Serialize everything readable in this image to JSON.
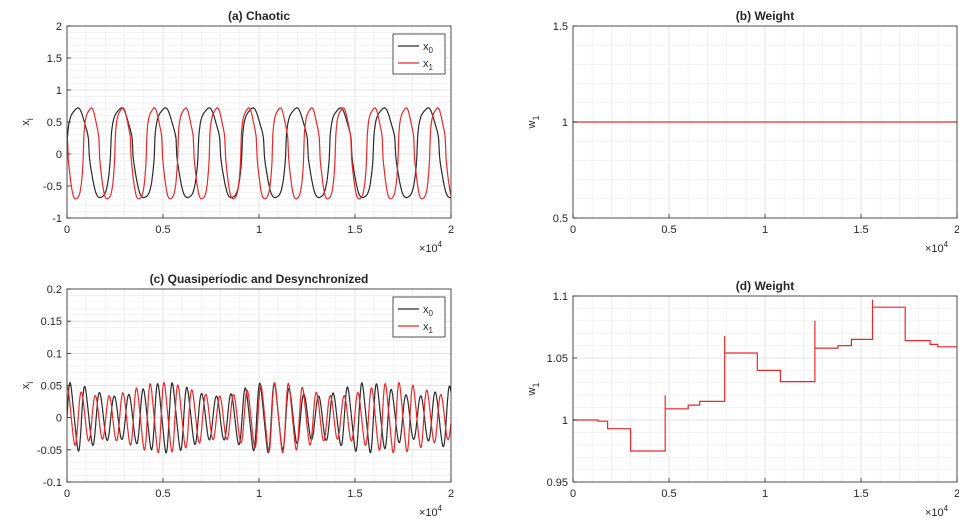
{
  "chart_data": [
    {
      "type": "line",
      "title": "(a) Chaotic",
      "ylabel": "x_i",
      "xlim": [
        0,
        20000
      ],
      "ylim": [
        -1,
        2
      ],
      "x_ticks": [
        "0",
        "0.5",
        "1",
        "1.5",
        "2"
      ],
      "y_ticks": [
        "-1",
        "-0.5",
        "0",
        "0.5",
        "1",
        "1.5",
        "2"
      ],
      "x_exponent": "×10^4",
      "legend_position": "top-right",
      "grid": true,
      "colors": {
        "x0": "#2b2b2b",
        "x1": "#e8292c"
      },
      "legend": [
        {
          "base": "x",
          "sub": "0"
        },
        {
          "base": "x",
          "sub": "1"
        }
      ],
      "series": [
        {
          "name": "x0",
          "period": 2280,
          "phase": 2280,
          "amplitude": 0.72,
          "dip": 0.68,
          "offset": 0
        },
        {
          "name": "x1",
          "period": 1640,
          "phase": 780,
          "amplitude": 0.72,
          "dip": 0.7,
          "offset": 0
        }
      ]
    },
    {
      "type": "line",
      "title": "(b) Weight",
      "ylabel": "w_1",
      "xlim": [
        0,
        20000
      ],
      "ylim": [
        0.5,
        1.5
      ],
      "x_ticks": [
        "0",
        "0.5",
        "1",
        "1.5",
        "2"
      ],
      "y_ticks": [
        "0.5",
        "1",
        "1.5"
      ],
      "x_exponent": "×10^4",
      "grid": true,
      "colors": {
        "w1": "#e8292c"
      },
      "series": [
        {
          "name": "w1",
          "x": [
            0,
            20000
          ],
          "y": [
            1,
            1
          ]
        }
      ]
    },
    {
      "type": "line",
      "title": "(c) Quasiperiodic and Desynchronized",
      "ylabel": "x_i",
      "xlim": [
        0,
        20000
      ],
      "ylim": [
        -0.1,
        0.2
      ],
      "x_ticks": [
        "0",
        "0.5",
        "1",
        "1.5",
        "2"
      ],
      "y_ticks": [
        "-0.1",
        "-0.05",
        "0",
        "0.05",
        "0.1",
        "0.15",
        "0.2"
      ],
      "x_exponent": "×10^4",
      "legend_position": "top-right",
      "grid": true,
      "colors": {
        "x0": "#2b2b2b",
        "x1": "#e8292c"
      },
      "legend": [
        {
          "base": "x",
          "sub": "0"
        },
        {
          "base": "x",
          "sub": "1"
        }
      ],
      "series": [
        {
          "name": "x0",
          "carrier_period": 760,
          "envelope_period": 5200,
          "amplitude": 0.095,
          "phase": 0
        },
        {
          "name": "x1",
          "carrier_period": 720,
          "envelope_period": 6100,
          "amplitude": 0.095,
          "phase": 1.2
        }
      ]
    },
    {
      "type": "line",
      "title": "(d) Weight",
      "ylabel": "w_1",
      "xlim": [
        0,
        20000
      ],
      "ylim": [
        0.95,
        1.1
      ],
      "x_ticks": [
        "0",
        "0.5",
        "1",
        "1.5",
        "2"
      ],
      "y_ticks": [
        "0.95",
        "1",
        "1.05",
        "1.1"
      ],
      "x_exponent": "×10^4",
      "grid": true,
      "colors": {
        "w1": "#e8292c"
      },
      "series": [
        {
          "name": "w1",
          "x": [
            0,
            1300,
            1300,
            1800,
            1800,
            3000,
            3000,
            4800,
            4800,
            4800,
            4800,
            6000,
            6000,
            6600,
            6600,
            7900,
            7900,
            7900,
            7900,
            9600,
            9600,
            10800,
            10800,
            12600,
            12600,
            12600,
            12600,
            13800,
            13800,
            14500,
            14500,
            15600,
            15600,
            15600,
            15600,
            17300,
            17300,
            18600,
            18600,
            19000,
            19000,
            20000
          ],
          "y": [
            1.0,
            1.0,
            0.999,
            0.999,
            0.993,
            0.993,
            0.975,
            0.975,
            1.02,
            1.02,
            1.009,
            1.009,
            1.012,
            1.012,
            1.015,
            1.015,
            1.068,
            1.068,
            1.054,
            1.054,
            1.04,
            1.04,
            1.031,
            1.031,
            1.08,
            1.08,
            1.058,
            1.058,
            1.06,
            1.06,
            1.065,
            1.065,
            1.097,
            1.097,
            1.091,
            1.091,
            1.064,
            1.064,
            1.061,
            1.061,
            1.059,
            1.059
          ]
        }
      ]
    }
  ]
}
